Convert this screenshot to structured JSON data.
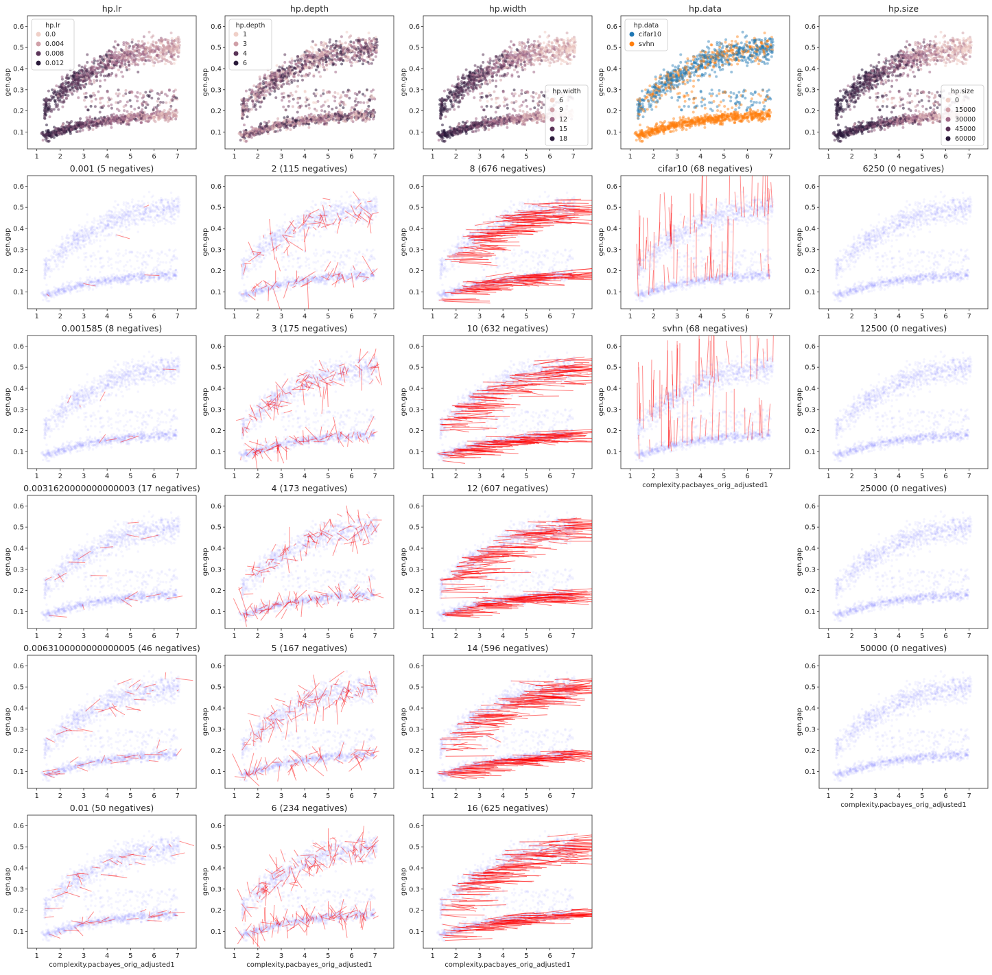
{
  "figure": {
    "x_label": "complexity.pacbayes_orig_adjusted1",
    "y_label": "gen.gap",
    "x_ticks": [
      "1",
      "2",
      "3",
      "4",
      "5",
      "6",
      "7"
    ],
    "y_ticks": [
      "0.1",
      "0.2",
      "0.3",
      "0.4",
      "0.5",
      "0.6"
    ],
    "colors": {
      "background_points": "#7070ff",
      "arrows": "#ff0000",
      "cifar10": "#1f77b4",
      "svhn": "#ff7f0e",
      "hue_scale": [
        "#f0d0c8",
        "#d0a0a8",
        "#a06a88",
        "#5a3458",
        "#2a1a3a"
      ]
    }
  },
  "chart_data": [
    {
      "type": "scatter",
      "title": "hp.lr",
      "hue": "hp.lr",
      "xlim": [
        0.6,
        7.8
      ],
      "ylim": [
        0.02,
        0.65
      ],
      "legend": {
        "title": "hp.lr",
        "position": "top-left",
        "entries": [
          "0.0",
          "0.004",
          "0.008",
          "0.012"
        ]
      }
    },
    {
      "type": "scatter",
      "title": "hp.depth",
      "hue": "hp.depth",
      "xlim": [
        0.6,
        7.8
      ],
      "ylim": [
        0.02,
        0.65
      ],
      "legend": {
        "title": "hp.depth",
        "position": "top-left",
        "entries": [
          "1",
          "3",
          "4",
          "6"
        ]
      }
    },
    {
      "type": "scatter",
      "title": "hp.width",
      "hue": "hp.width",
      "xlim": [
        0.6,
        7.8
      ],
      "ylim": [
        0.02,
        0.65
      ],
      "legend": {
        "title": "hp.width",
        "position": "lower-right",
        "entries": [
          "6",
          "9",
          "12",
          "15",
          "18"
        ]
      }
    },
    {
      "type": "scatter",
      "title": "hp.data",
      "hue": "hp.data",
      "xlim": [
        0.6,
        7.8
      ],
      "ylim": [
        0.02,
        0.65
      ],
      "legend": {
        "title": "hp.data",
        "position": "top-left",
        "entries": [
          "cifar10",
          "svhn"
        ]
      }
    },
    {
      "type": "scatter",
      "title": "hp.size",
      "hue": "hp.size",
      "xlim": [
        0.6,
        7.8
      ],
      "ylim": [
        0.02,
        0.65
      ],
      "legend": {
        "title": "hp.size",
        "position": "lower-right",
        "entries": [
          "0",
          "15000",
          "30000",
          "45000",
          "60000"
        ]
      }
    },
    {
      "type": "scatter",
      "title": "0.001 (5 negatives)",
      "group": "hp.lr",
      "value": "0.001",
      "negatives": 5
    },
    {
      "type": "scatter",
      "title": "0.001585 (8 negatives)",
      "group": "hp.lr",
      "value": "0.001585",
      "negatives": 8
    },
    {
      "type": "scatter",
      "title": "0.0031620000000000003 (17 negatives)",
      "group": "hp.lr",
      "value": "0.0031620000000000003",
      "negatives": 17
    },
    {
      "type": "scatter",
      "title": "0.0063100000000000005 (46 negatives)",
      "group": "hp.lr",
      "value": "0.0063100000000000005",
      "negatives": 46
    },
    {
      "type": "scatter",
      "title": "0.01 (50 negatives)",
      "group": "hp.lr",
      "value": "0.01",
      "negatives": 50
    },
    {
      "type": "scatter",
      "title": "2 (115 negatives)",
      "group": "hp.depth",
      "value": "2",
      "negatives": 115
    },
    {
      "type": "scatter",
      "title": "3 (175 negatives)",
      "group": "hp.depth",
      "value": "3",
      "negatives": 175
    },
    {
      "type": "scatter",
      "title": "4 (173 negatives)",
      "group": "hp.depth",
      "value": "4",
      "negatives": 173
    },
    {
      "type": "scatter",
      "title": "5 (167 negatives)",
      "group": "hp.depth",
      "value": "5",
      "negatives": 167
    },
    {
      "type": "scatter",
      "title": "6 (234 negatives)",
      "group": "hp.depth",
      "value": "6",
      "negatives": 234
    },
    {
      "type": "scatter",
      "title": "8 (676 negatives)",
      "group": "hp.width",
      "value": "8",
      "negatives": 676
    },
    {
      "type": "scatter",
      "title": "10 (632 negatives)",
      "group": "hp.width",
      "value": "10",
      "negatives": 632
    },
    {
      "type": "scatter",
      "title": "12 (607 negatives)",
      "group": "hp.width",
      "value": "12",
      "negatives": 607
    },
    {
      "type": "scatter",
      "title": "14 (596 negatives)",
      "group": "hp.width",
      "value": "14",
      "negatives": 596
    },
    {
      "type": "scatter",
      "title": "16 (625 negatives)",
      "group": "hp.width",
      "value": "16",
      "negatives": 625
    },
    {
      "type": "scatter",
      "title": "cifar10 (68 negatives)",
      "group": "hp.data",
      "value": "cifar10",
      "negatives": 68
    },
    {
      "type": "scatter",
      "title": "svhn (68 negatives)",
      "group": "hp.data",
      "value": "svhn",
      "negatives": 68
    },
    {
      "type": "scatter",
      "title": "6250 (0 negatives)",
      "group": "hp.size",
      "value": "6250",
      "negatives": 0
    },
    {
      "type": "scatter",
      "title": "12500 (0 negatives)",
      "group": "hp.size",
      "value": "12500",
      "negatives": 0
    },
    {
      "type": "scatter",
      "title": "25000 (0 negatives)",
      "group": "hp.size",
      "value": "25000",
      "negatives": 0
    },
    {
      "type": "scatter",
      "title": "50000 (0 negatives)",
      "group": "hp.size",
      "value": "50000",
      "negatives": 0
    }
  ]
}
